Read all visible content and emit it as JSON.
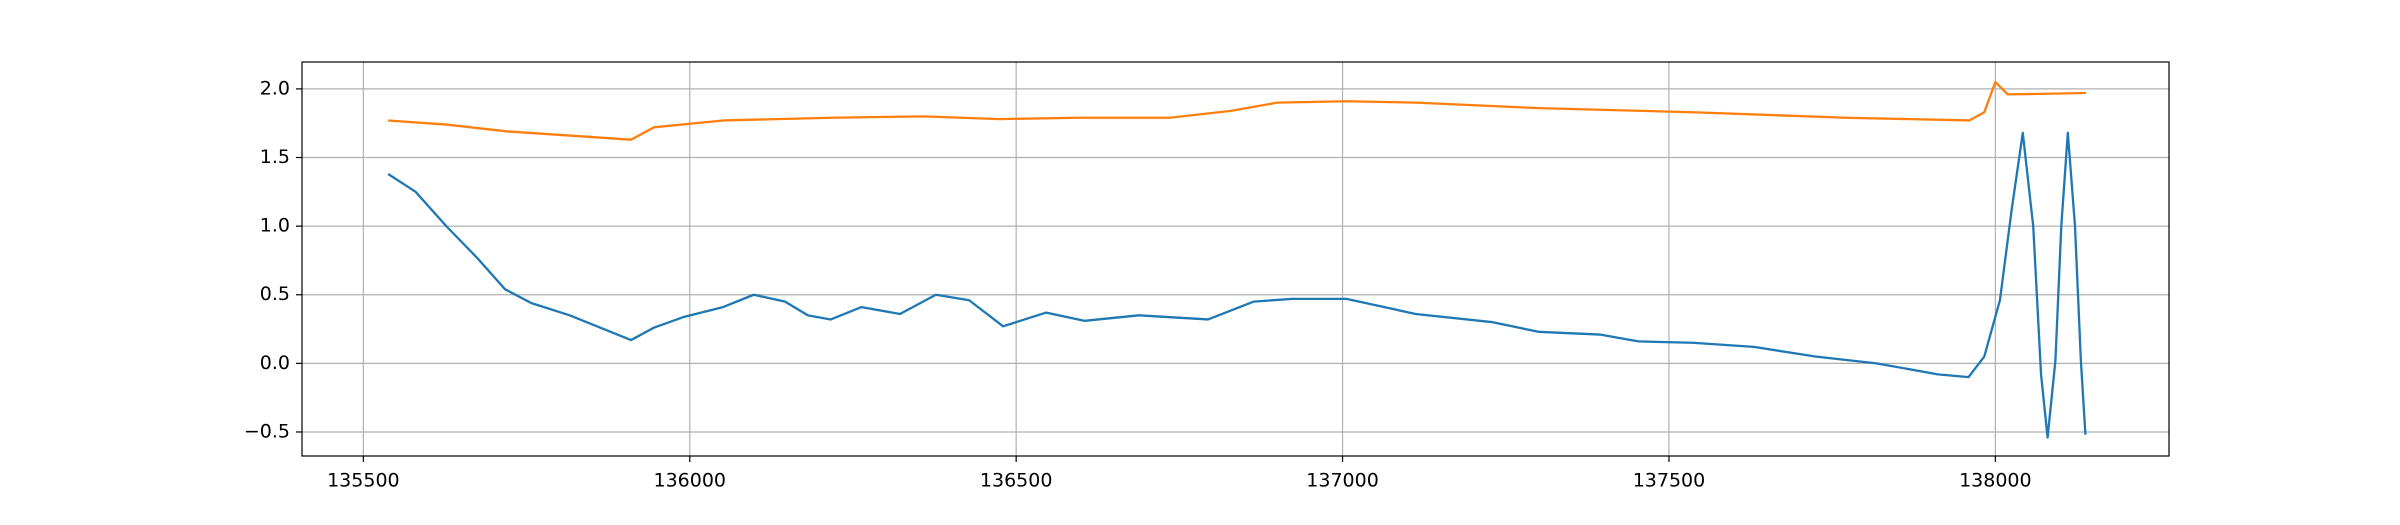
{
  "chart_data": {
    "type": "line",
    "xlim": [
      135406,
      138266
    ],
    "ylim": [
      -0.675,
      2.196
    ],
    "xticks": [
      135500,
      136000,
      136500,
      137000,
      137500,
      138000
    ],
    "yticks": [
      {
        "value": -0.5,
        "label": "−0.5"
      },
      {
        "value": 0,
        "label": "0.0"
      },
      {
        "value": 0.5,
        "label": "0.5"
      },
      {
        "value": 1,
        "label": "1.0"
      },
      {
        "value": 1.5,
        "label": "1.5"
      },
      {
        "value": 2,
        "label": "2.0"
      }
    ],
    "grid": true,
    "series": [
      {
        "color": "#1f77b4",
        "x": [
          135538,
          135580,
          135627,
          135674,
          135717,
          135757,
          135816,
          135863,
          135910,
          135945,
          135992,
          136051,
          136098,
          136146,
          136181,
          136216,
          136263,
          136322,
          136377,
          136428,
          136480,
          136546,
          136605,
          136688,
          136794,
          136864,
          136923,
          137006,
          137112,
          137230,
          137300,
          137394,
          137453,
          137536,
          137630,
          137724,
          137818,
          137912,
          137959,
          137983,
          138007,
          138025,
          138042,
          138058,
          138070,
          138080,
          138092,
          138101,
          138111,
          138122,
          138131,
          138138
        ],
        "values": [
          1.38,
          1.25,
          1.0,
          0.77,
          0.54,
          0.44,
          0.35,
          0.26,
          0.17,
          0.26,
          0.34,
          0.41,
          0.5,
          0.45,
          0.35,
          0.32,
          0.41,
          0.36,
          0.5,
          0.46,
          0.27,
          0.37,
          0.31,
          0.35,
          0.32,
          0.45,
          0.47,
          0.47,
          0.36,
          0.3,
          0.23,
          0.21,
          0.16,
          0.15,
          0.12,
          0.05,
          0.0,
          -0.08,
          -0.1,
          0.05,
          0.46,
          1.12,
          1.68,
          1.0,
          -0.08,
          -0.54,
          0.02,
          1.0,
          1.68,
          1.0,
          0.02,
          -0.52
        ]
      },
      {
        "color": "#ff7f0e",
        "x": [
          135538,
          135627,
          135721,
          135816,
          135910,
          135945,
          136051,
          136216,
          136358,
          136475,
          136593,
          136735,
          136829,
          136900,
          137006,
          137112,
          137300,
          137536,
          137771,
          137960,
          137983,
          138000,
          138019,
          138139
        ],
        "values": [
          1.77,
          1.74,
          1.69,
          1.66,
          1.63,
          1.72,
          1.77,
          1.79,
          1.8,
          1.78,
          1.79,
          1.79,
          1.84,
          1.9,
          1.91,
          1.9,
          1.86,
          1.83,
          1.79,
          1.77,
          1.83,
          2.05,
          1.96,
          1.97
        ]
      }
    ]
  }
}
